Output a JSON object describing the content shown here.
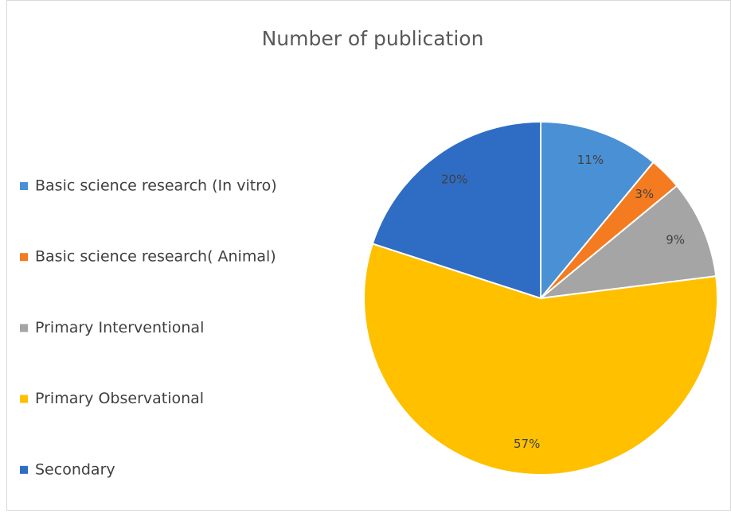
{
  "chart_data": {
    "type": "pie",
    "title": "Number of publication",
    "categories": [
      "Basic science research (In vitro)",
      "Basic science research( Animal)",
      "Primary Interventional",
      "Primary Observational",
      "Secondary"
    ],
    "values": [
      11,
      3,
      9,
      57,
      20
    ],
    "value_labels": [
      "11%",
      "3%",
      "9%",
      "57%",
      "20%"
    ],
    "colors": [
      "#4a90d4",
      "#f47b20",
      "#a5a5a5",
      "#ffc000",
      "#2f6cc4"
    ],
    "legend": "left"
  }
}
